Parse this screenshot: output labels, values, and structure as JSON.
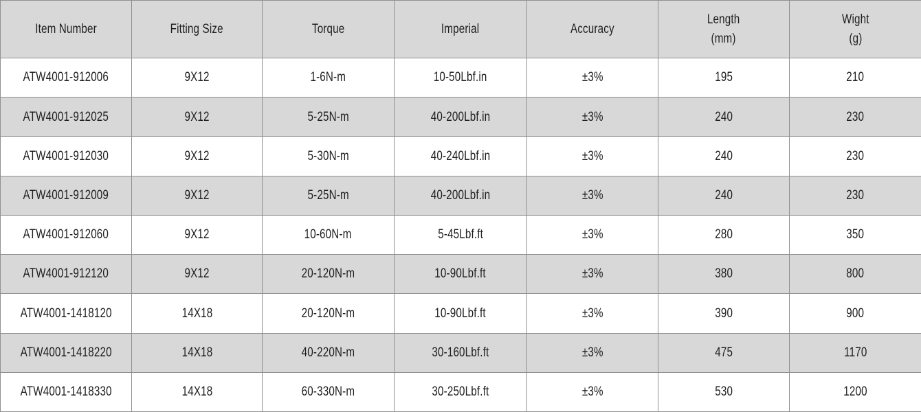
{
  "theme": {
    "header_bg": "#d8d8d8",
    "row_bg": "#ffffff",
    "row_alt_bg": "#d8d8d8",
    "border_color": "#8f8f8f",
    "text_color": "#1e1e1e"
  },
  "table": {
    "columns": [
      {
        "id": "item-number",
        "label_lines": [
          "Item Number"
        ]
      },
      {
        "id": "fitting-size",
        "label_lines": [
          "Fitting Size"
        ]
      },
      {
        "id": "torque",
        "label_lines": [
          "Torque"
        ]
      },
      {
        "id": "imperial",
        "label_lines": [
          "Imperial"
        ]
      },
      {
        "id": "accuracy",
        "label_lines": [
          "Accuracy"
        ]
      },
      {
        "id": "length-mm",
        "label_lines": [
          "Length",
          "(mm)"
        ]
      },
      {
        "id": "wight-g",
        "label_lines": [
          "Wight",
          "(g)"
        ]
      }
    ],
    "rows": [
      [
        "ATW4001-912006",
        "9X12",
        "1-6N-m",
        "10-50Lbf.in",
        "±3%",
        "195",
        "210"
      ],
      [
        "ATW4001-912025",
        "9X12",
        "5-25N-m",
        "40-200Lbf.in",
        "±3%",
        "240",
        "230"
      ],
      [
        "ATW4001-912030",
        "9X12",
        "5-30N-m",
        "40-240Lbf.in",
        "±3%",
        "240",
        "230"
      ],
      [
        "ATW4001-912009",
        "9X12",
        "5-25N-m",
        "40-200Lbf.in",
        "±3%",
        "240",
        "230"
      ],
      [
        "ATW4001-912060",
        "9X12",
        "10-60N-m",
        "5-45Lbf.ft",
        "±3%",
        "280",
        "350"
      ],
      [
        "ATW4001-912120",
        "9X12",
        "20-120N-m",
        "10-90Lbf.ft",
        "±3%",
        "380",
        "800"
      ],
      [
        "ATW4001-1418120",
        "14X18",
        "20-120N-m",
        "10-90Lbf.ft",
        "±3%",
        "390",
        "900"
      ],
      [
        "ATW4001-1418220",
        "14X18",
        "40-220N-m",
        "30-160Lbf.ft",
        "±3%",
        "475",
        "1170"
      ],
      [
        "ATW4001-1418330",
        "14X18",
        "60-330N-m",
        "30-250Lbf.ft",
        "±3%",
        "530",
        "1200"
      ]
    ]
  },
  "chart_data": {
    "type": "table",
    "title": "",
    "columns": [
      "Item Number",
      "Fitting Size",
      "Torque",
      "Imperial",
      "Accuracy",
      "Length (mm)",
      "Wight (g)"
    ],
    "rows": [
      [
        "ATW4001-912006",
        "9X12",
        "1-6N-m",
        "10-50Lbf.in",
        "±3%",
        195,
        210
      ],
      [
        "ATW4001-912025",
        "9X12",
        "5-25N-m",
        "40-200Lbf.in",
        "±3%",
        240,
        230
      ],
      [
        "ATW4001-912030",
        "9X12",
        "5-30N-m",
        "40-240Lbf.in",
        "±3%",
        240,
        230
      ],
      [
        "ATW4001-912009",
        "9X12",
        "5-25N-m",
        "40-200Lbf.in",
        "±3%",
        240,
        230
      ],
      [
        "ATW4001-912060",
        "9X12",
        "10-60N-m",
        "5-45Lbf.ft",
        "±3%",
        280,
        350
      ],
      [
        "ATW4001-912120",
        "9X12",
        "20-120N-m",
        "10-90Lbf.ft",
        "±3%",
        380,
        800
      ],
      [
        "ATW4001-1418120",
        "14X18",
        "20-120N-m",
        "10-90Lbf.ft",
        "±3%",
        390,
        900
      ],
      [
        "ATW4001-1418220",
        "14X18",
        "40-220N-m",
        "30-160Lbf.ft",
        "±3%",
        475,
        1170
      ],
      [
        "ATW4001-1418330",
        "14X18",
        "60-330N-m",
        "30-250Lbf.ft",
        "±3%",
        530,
        1200
      ]
    ],
    "layout": {
      "header_two_line_columns": [
        "Length (mm)",
        "Wight (g)"
      ],
      "row_striping": "white / light-gray alternating, header gray",
      "grid": "full gridlines"
    }
  }
}
